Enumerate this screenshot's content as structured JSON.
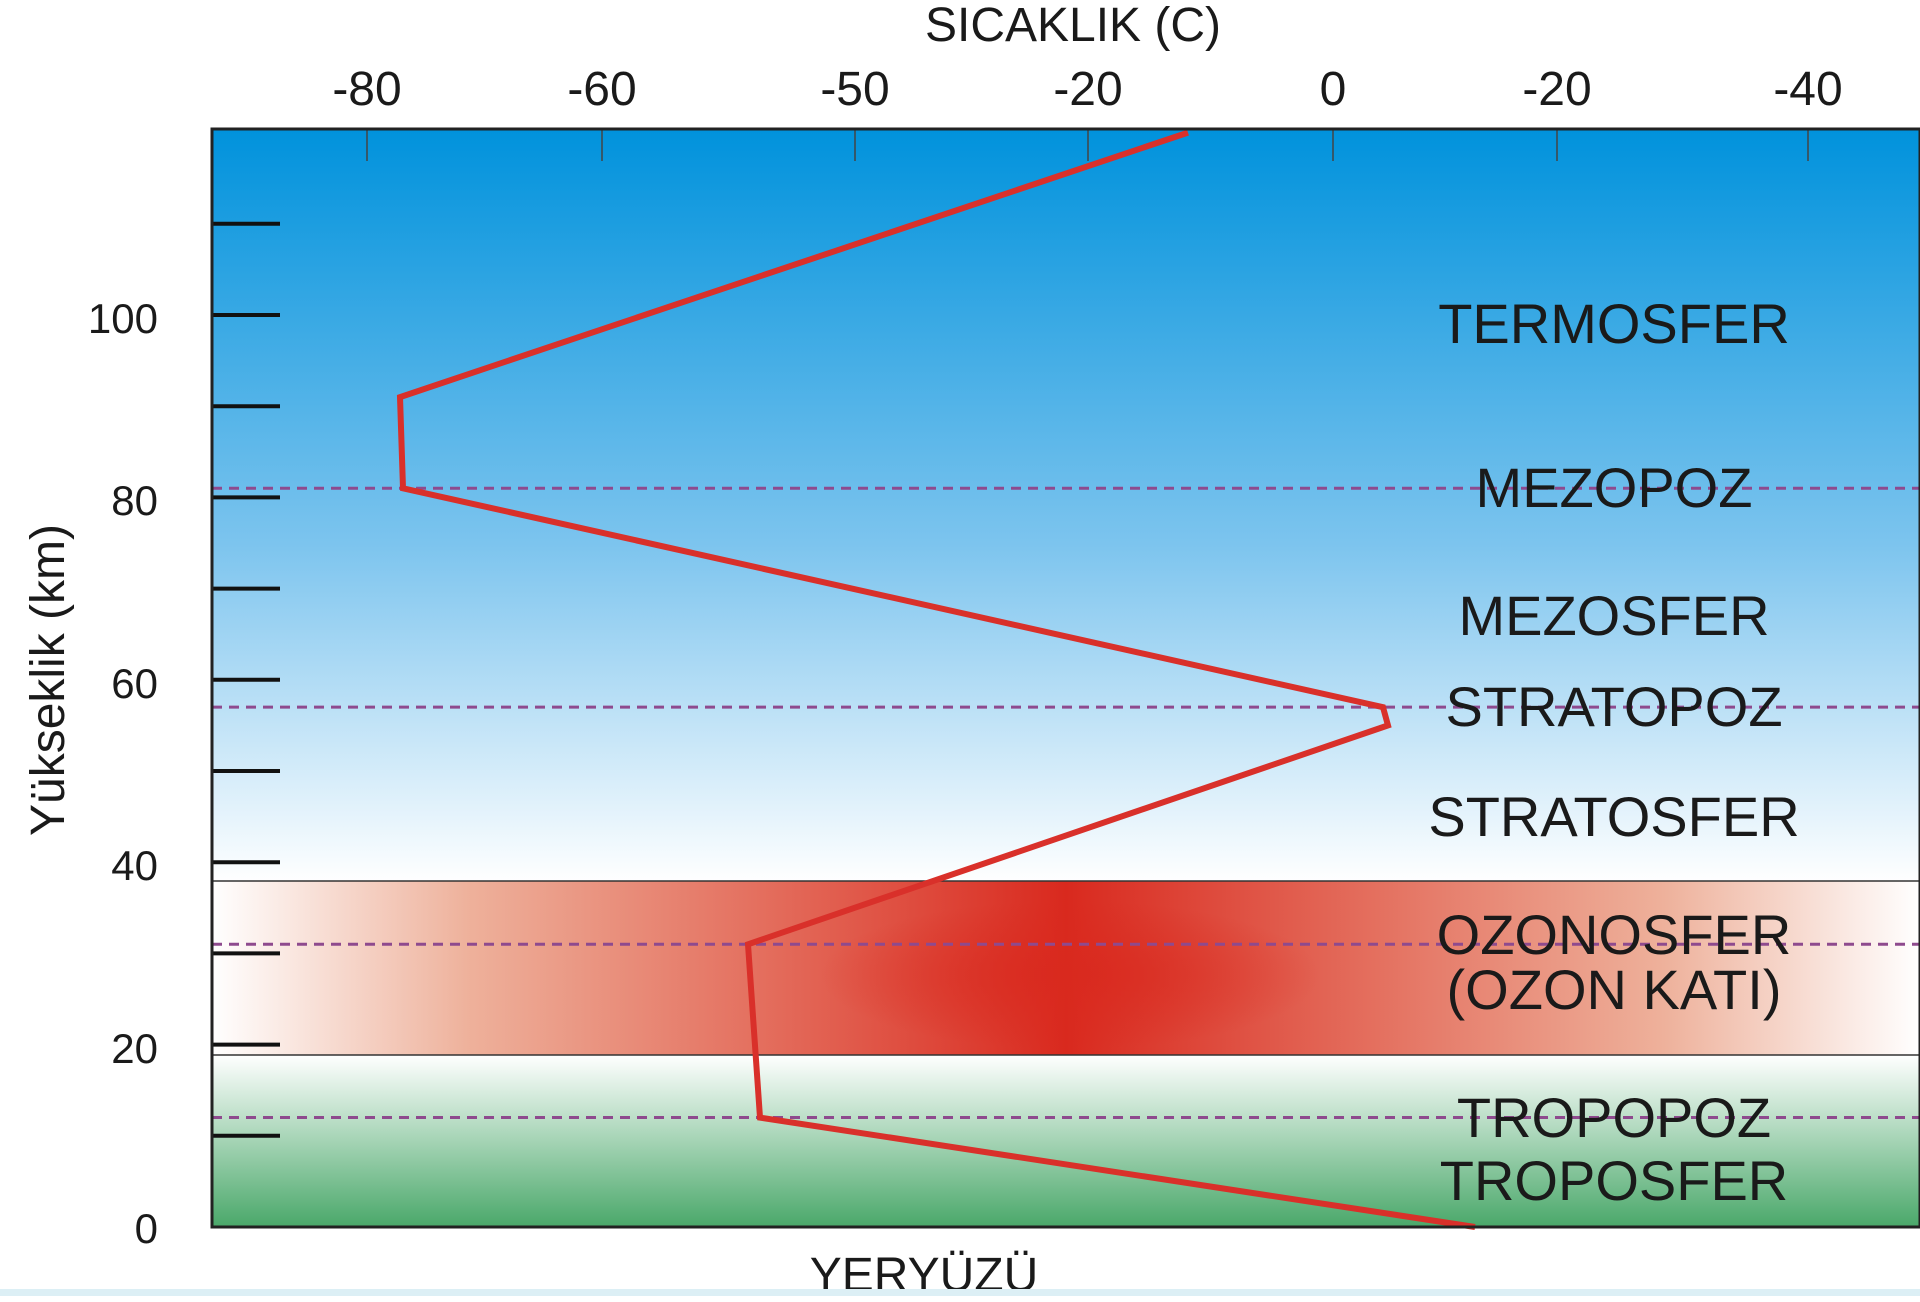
{
  "chart_data": {
    "type": "line",
    "x_axis_title": "SICAKLIK (C)",
    "x_tick_labels": [
      "-80",
      "-60",
      "-50",
      "-20",
      "0",
      "-20",
      "-40"
    ],
    "y_axis_title": "Yükseklik (km)",
    "y_tick_labels": [
      "0",
      "20",
      "40",
      "60",
      "80",
      "100"
    ],
    "ylim": [
      0,
      120
    ],
    "bottom_label": "YERYÜZÜ",
    "temperature_profile": [
      {
        "altitude_km": 0,
        "temperature_label": "15"
      },
      {
        "altitude_km": 12,
        "temperature_label": "-56"
      },
      {
        "altitude_km": 31,
        "temperature_label": "-57"
      },
      {
        "altitude_km": 55,
        "temperature_label": "0"
      },
      {
        "altitude_km": 57,
        "temperature_label": "0"
      },
      {
        "altitude_km": 81,
        "temperature_label": "-88"
      },
      {
        "altitude_km": 91,
        "temperature_label": "-88"
      },
      {
        "altitude_km": 120,
        "temperature_label": "-20"
      }
    ],
    "boundaries": [
      {
        "name": "MEZOPOZ",
        "altitude_km": 81
      },
      {
        "name": "STRATOPOZ",
        "altitude_km": 57
      },
      {
        "name": "OZONOSFER",
        "altitude_km": 31
      },
      {
        "name": "TROPOPOZ",
        "altitude_km": 12
      }
    ],
    "ozone_layer_km": [
      19,
      38
    ],
    "layers": [
      {
        "label": "TERMOSFER",
        "altitude_km": 99
      },
      {
        "label": "MEZOPOZ",
        "altitude_km": 81
      },
      {
        "label": "MEZOSFER",
        "altitude_km": 67
      },
      {
        "label": "STRATOPOZ",
        "altitude_km": 57
      },
      {
        "label": "STRATOSFER",
        "altitude_km": 45
      },
      {
        "label": "OZONOSFER",
        "altitude_km": 32
      },
      {
        "label": "(OZON KATI)",
        "altitude_km": 26
      },
      {
        "label": "TROPOPOZ",
        "altitude_km": 12
      },
      {
        "label": "TROPOSFER",
        "altitude_km": 5
      }
    ],
    "colors": {
      "profile_line": "#d9302a",
      "boundary_line": "#8e4a8e",
      "sky_top": "#0092dc",
      "sky_bottom": "#ffffff",
      "ozone": "#d9291e",
      "ground": "#4aa86a"
    }
  }
}
